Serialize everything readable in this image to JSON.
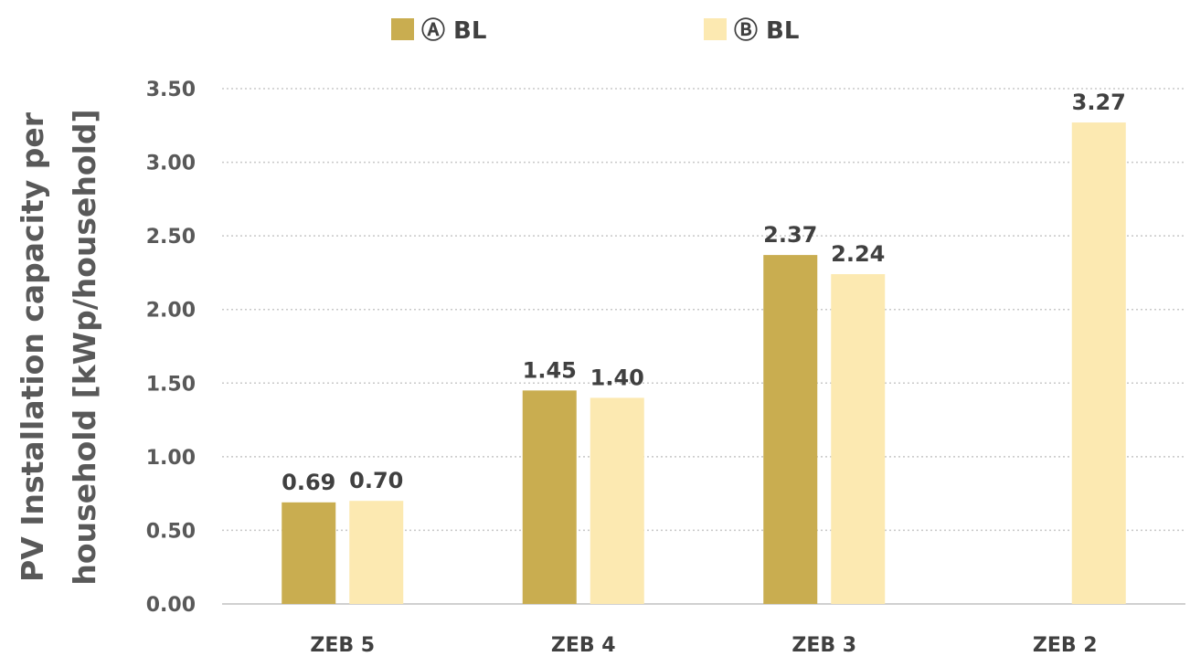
{
  "chart_data": {
    "type": "bar",
    "title": "",
    "xlabel": "",
    "ylabel_lines": [
      "PV Installation capacity per",
      "household [kWp/household]"
    ],
    "categories": [
      "ZEB 5",
      "ZEB 4",
      "ZEB 3",
      "ZEB 2"
    ],
    "series": [
      {
        "name": "Ⓐ BL",
        "color": "#C9AD50",
        "values": [
          0.69,
          1.45,
          2.37,
          null
        ],
        "labels": [
          "0.69",
          "1.45",
          "2.37",
          ""
        ]
      },
      {
        "name": "Ⓑ BL",
        "color": "#FCE9B1",
        "values": [
          0.7,
          1.4,
          2.24,
          3.27
        ],
        "labels": [
          "0.70",
          "1.40",
          "2.24",
          "3.27"
        ]
      }
    ],
    "ylim": [
      0,
      3.5
    ],
    "yticks": [
      "0.00",
      "0.50",
      "1.00",
      "1.50",
      "2.00",
      "2.50",
      "3.00",
      "3.50"
    ],
    "grid": "horizontal-dotted",
    "legend_position": "top-center",
    "grid_color": "#C8C8C8",
    "axis_color": "#D0D0D0"
  }
}
